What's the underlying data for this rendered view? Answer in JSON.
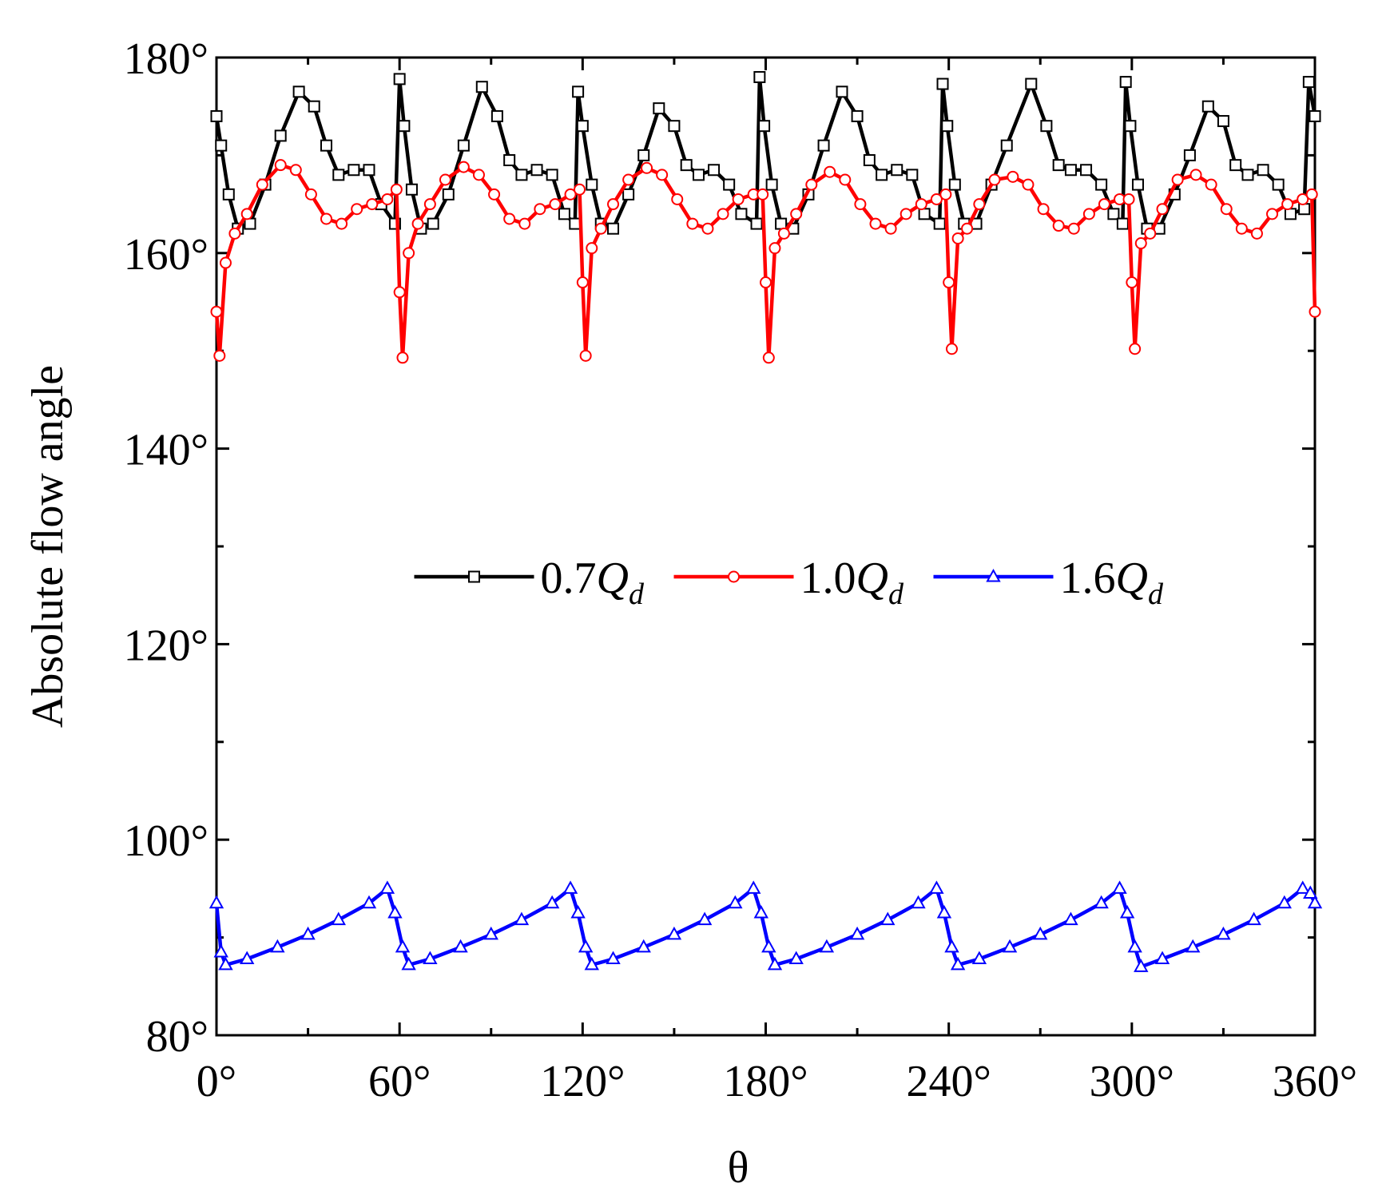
{
  "chart_data": {
    "type": "line",
    "xlabel": "θ",
    "ylabel": "Absolute flow angle",
    "xlim": [
      0,
      360
    ],
    "ylim": [
      80,
      180
    ],
    "xticks": [
      {
        "value": 0,
        "label": "0°"
      },
      {
        "value": 60,
        "label": "60°"
      },
      {
        "value": 120,
        "label": "120°"
      },
      {
        "value": 180,
        "label": "180°"
      },
      {
        "value": 240,
        "label": "240°"
      },
      {
        "value": 300,
        "label": "300°"
      },
      {
        "value": 360,
        "label": "360°"
      }
    ],
    "yticks": [
      {
        "value": 80,
        "label": "80°"
      },
      {
        "value": 100,
        "label": "100°"
      },
      {
        "value": 120,
        "label": "120°"
      },
      {
        "value": 140,
        "label": "140°"
      },
      {
        "value": 160,
        "label": "160°"
      },
      {
        "value": 180,
        "label": "180°"
      }
    ],
    "xminorticks": [
      30,
      90,
      150,
      210,
      270,
      330
    ],
    "yminorticks": [
      90,
      110,
      130,
      150,
      170
    ],
    "legend": "center",
    "series": [
      {
        "name": "0.7Qd",
        "color": "#000000",
        "marker": "square",
        "x": [
          0,
          1.5,
          4,
          7,
          11,
          16,
          21,
          27,
          32,
          36,
          40,
          45,
          50,
          54,
          58.5,
          60,
          61.5,
          64,
          67,
          71,
          76,
          81,
          87,
          92,
          96,
          100,
          105,
          110,
          114,
          117.5,
          118.5,
          120,
          123,
          126,
          130,
          135,
          140,
          145,
          150,
          154,
          158,
          163,
          168,
          172,
          177,
          178,
          179.5,
          182,
          185,
          189,
          194,
          199,
          205,
          210,
          214,
          218,
          223,
          228,
          232,
          237,
          238,
          239.5,
          242,
          245,
          249,
          254,
          259,
          267,
          272,
          276,
          280,
          285,
          290,
          294,
          297,
          298,
          299.5,
          302,
          305,
          309,
          314,
          319,
          325,
          330,
          334,
          338,
          343,
          348,
          352,
          356.5,
          358,
          360
        ],
        "values": [
          174,
          171,
          166,
          162.5,
          163,
          167,
          172,
          176.5,
          175,
          171,
          168,
          168.5,
          168.5,
          165,
          163,
          177.8,
          173,
          166.5,
          162.5,
          163,
          166,
          171,
          177,
          174,
          169.5,
          168,
          168.5,
          168,
          164,
          163,
          176.5,
          173,
          167,
          163,
          162.5,
          166,
          170,
          174.8,
          173,
          169,
          168,
          168.5,
          167,
          164,
          163,
          178,
          173,
          167,
          163,
          162.5,
          166,
          171,
          176.5,
          174,
          169.5,
          168,
          168.5,
          168,
          164,
          163,
          177.3,
          173,
          167,
          163,
          163,
          167,
          171,
          177.3,
          173,
          169,
          168.5,
          168.5,
          167,
          164,
          163,
          177.5,
          173,
          167,
          162.5,
          162.5,
          166,
          170,
          175,
          173.5,
          169,
          168,
          168.5,
          167,
          164,
          164.5,
          177.5,
          174
        ]
      },
      {
        "name": "1.0Qd",
        "color": "#ff0000",
        "marker": "circle",
        "x": [
          0,
          1,
          3,
          6,
          10,
          15,
          21,
          26,
          31,
          36,
          41,
          46,
          51,
          56,
          59,
          60,
          61,
          63,
          66,
          70,
          75,
          81,
          86,
          91,
          96,
          101,
          106,
          111,
          116,
          119,
          120,
          121,
          123,
          126,
          130,
          135,
          141,
          146,
          151,
          156,
          161,
          166,
          171,
          176,
          179,
          180,
          181,
          183,
          186,
          190,
          195,
          201,
          206,
          211,
          216,
          221,
          226,
          231,
          236,
          239,
          240,
          241,
          243,
          246,
          250,
          255,
          261,
          266,
          271,
          276,
          281,
          286,
          291,
          296,
          299,
          300,
          301,
          303,
          306,
          310,
          315,
          321,
          326,
          331,
          336,
          341,
          346,
          351,
          356,
          359,
          360
        ],
        "values": [
          154,
          149.5,
          159,
          162,
          164,
          167,
          169,
          168.5,
          166,
          163.5,
          163,
          164.5,
          165,
          165.5,
          166.5,
          156,
          149.3,
          160,
          163,
          165,
          167.5,
          168.8,
          168,
          166,
          163.5,
          163,
          164.5,
          165,
          166,
          166.5,
          157,
          149.5,
          160.5,
          162.5,
          165,
          167.5,
          168.7,
          168,
          165.5,
          163,
          162.5,
          164,
          165.5,
          166,
          166,
          157,
          149.3,
          160.5,
          162,
          164,
          167,
          168.3,
          167.5,
          165,
          163,
          162.5,
          164,
          165,
          165.5,
          166,
          157,
          150.2,
          161.5,
          162.5,
          165,
          167.5,
          167.8,
          167,
          164.5,
          162.8,
          162.5,
          164,
          165,
          165.5,
          165.5,
          157,
          150.2,
          161,
          162,
          164.5,
          167.5,
          168,
          167,
          164.5,
          162.5,
          162,
          164,
          165,
          165.5,
          166,
          154
        ]
      },
      {
        "name": "1.6Qd",
        "color": "#0000ff",
        "marker": "triangle",
        "x": [
          0,
          1.5,
          3,
          10,
          20,
          30,
          40,
          50,
          56,
          58.5,
          61,
          63,
          70,
          80,
          90,
          100,
          110,
          116,
          118.5,
          121,
          123,
          130,
          140,
          150,
          160,
          170,
          176,
          178.5,
          181,
          183,
          190,
          200,
          210,
          220,
          230,
          236,
          238.5,
          241,
          243,
          250,
          260,
          270,
          280,
          290,
          296,
          298.5,
          301,
          303,
          310,
          320,
          330,
          340,
          350,
          356,
          358.5,
          360
        ],
        "values": [
          93.5,
          88.5,
          87.2,
          87.8,
          89,
          90.3,
          91.8,
          93.5,
          95,
          92.5,
          89,
          87.2,
          87.8,
          89,
          90.3,
          91.8,
          93.5,
          95,
          92.5,
          89,
          87.2,
          87.8,
          89,
          90.3,
          91.8,
          93.5,
          95,
          92.5,
          89,
          87.2,
          87.8,
          89,
          90.3,
          91.8,
          93.5,
          95,
          92.5,
          89,
          87.2,
          87.8,
          89,
          90.3,
          91.8,
          93.5,
          95,
          92.5,
          89,
          87,
          87.8,
          89,
          90.3,
          91.8,
          93.5,
          95,
          94.5,
          93.5
        ]
      }
    ]
  }
}
